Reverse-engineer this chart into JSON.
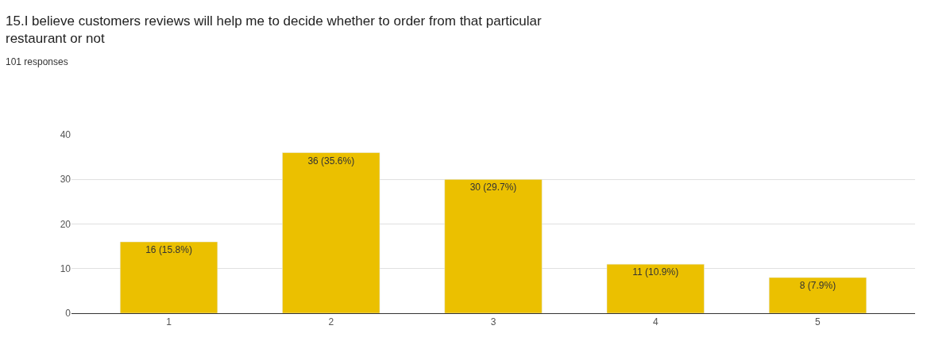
{
  "chart_data": {
    "type": "bar",
    "title": "15.I believe customers reviews will help me to decide whether to order from that particular restaurant or not",
    "subtitle": "101 responses",
    "categories": [
      "1",
      "2",
      "3",
      "4",
      "5"
    ],
    "values": [
      16,
      36,
      30,
      11,
      8
    ],
    "value_labels": [
      "16 (15.8%)",
      "36 (35.6%)",
      "30 (29.7%)",
      "11 (10.9%)",
      "8 (7.9%)"
    ],
    "color": "#ebc000",
    "ylim": [
      0,
      40
    ],
    "yticks": [
      0,
      10,
      20,
      30,
      40
    ],
    "grid": "y"
  }
}
